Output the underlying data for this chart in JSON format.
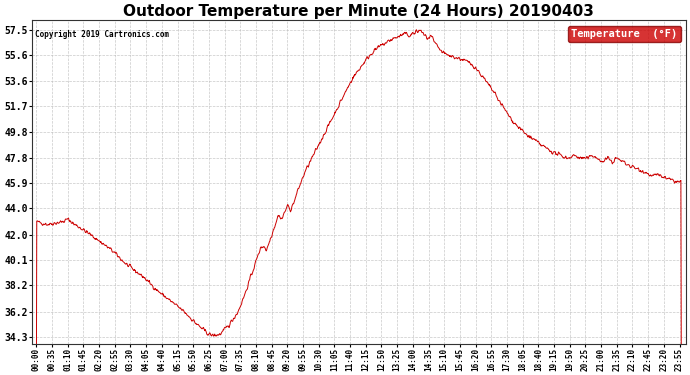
{
  "title": "Outdoor Temperature per Minute (24 Hours) 20190403",
  "copyright_text": "Copyright 2019 Cartronics.com",
  "legend_label": "Temperature  (°F)",
  "yticks": [
    34.3,
    36.2,
    38.2,
    40.1,
    42.0,
    44.0,
    45.9,
    47.8,
    49.8,
    51.7,
    53.6,
    55.6,
    57.5
  ],
  "ylim": [
    33.8,
    58.2
  ],
  "xlim": [
    -10,
    1449
  ],
  "line_color": "#cc0000",
  "background_color": "#ffffff",
  "grid_color": "#bbbbbb",
  "title_fontsize": 11,
  "legend_bg": "#cc0000",
  "legend_fg": "#ffffff",
  "fig_width": 6.9,
  "fig_height": 3.75,
  "dpi": 100
}
